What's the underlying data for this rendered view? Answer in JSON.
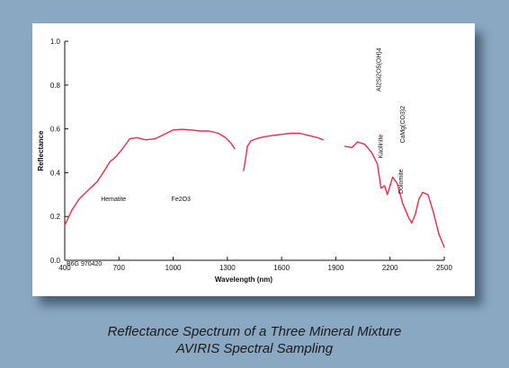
{
  "caption": {
    "line1": "Reflectance Spectrum of a Three Mineral Mixture",
    "line2": "AVIRIS Spectral Sampling"
  },
  "colors": {
    "background": "#8aa8c2",
    "card": "#ffffff",
    "series": "#ee2a4a",
    "axis": "#111111"
  },
  "chart_data": {
    "type": "line",
    "title": "",
    "xlabel": "Wavelength (nm)",
    "ylabel": "Reflectance",
    "xlim": [
      400,
      2500
    ],
    "ylim": [
      0.0,
      1.0
    ],
    "grid": false,
    "x_ticks": [
      {
        "value": 400,
        "label": "400"
      },
      {
        "value": 700,
        "label": "700"
      },
      {
        "value": 1000,
        "label": "1000"
      },
      {
        "value": 1300,
        "label": "1300"
      },
      {
        "value": 1600,
        "label": "1600"
      },
      {
        "value": 1900,
        "label": "1900"
      },
      {
        "value": 2200,
        "label": "2200"
      },
      {
        "value": 2500,
        "label": "2500"
      }
    ],
    "y_ticks": [
      {
        "value": 0.0,
        "label": "0.0"
      },
      {
        "value": 0.2,
        "label": "0.2"
      },
      {
        "value": 0.4,
        "label": "0.4"
      },
      {
        "value": 0.6,
        "label": "0.6"
      },
      {
        "value": 0.8,
        "label": "0.8"
      },
      {
        "value": 1.0,
        "label": "1.0"
      }
    ],
    "series": [
      {
        "segments": [
          [
            [
              400,
              0.16
            ],
            [
              440,
              0.23
            ],
            [
              480,
              0.28
            ],
            [
              530,
              0.32
            ],
            [
              580,
              0.36
            ],
            [
              620,
              0.41
            ],
            [
              650,
              0.45
            ],
            [
              680,
              0.47
            ],
            [
              720,
              0.51
            ],
            [
              760,
              0.555
            ],
            [
              800,
              0.56
            ],
            [
              850,
              0.55
            ],
            [
              900,
              0.555
            ],
            [
              950,
              0.575
            ],
            [
              1000,
              0.595
            ],
            [
              1050,
              0.598
            ],
            [
              1100,
              0.595
            ],
            [
              1150,
              0.59
            ],
            [
              1200,
              0.59
            ],
            [
              1250,
              0.58
            ],
            [
              1290,
              0.56
            ],
            [
              1320,
              0.535
            ],
            [
              1340,
              0.51
            ]
          ],
          [
            [
              1390,
              0.41
            ],
            [
              1400,
              0.46
            ],
            [
              1410,
              0.52
            ],
            [
              1430,
              0.545
            ],
            [
              1460,
              0.555
            ],
            [
              1500,
              0.563
            ],
            [
              1550,
              0.57
            ],
            [
              1600,
              0.575
            ],
            [
              1650,
              0.58
            ],
            [
              1700,
              0.58
            ],
            [
              1750,
              0.57
            ],
            [
              1800,
              0.56
            ],
            [
              1830,
              0.55
            ]
          ],
          [
            [
              1950,
              0.52
            ],
            [
              1990,
              0.515
            ],
            [
              2020,
              0.54
            ],
            [
              2060,
              0.53
            ],
            [
              2100,
              0.49
            ],
            [
              2130,
              0.44
            ],
            [
              2150,
              0.33
            ],
            [
              2170,
              0.34
            ],
            [
              2185,
              0.3
            ],
            [
              2200,
              0.34
            ],
            [
              2215,
              0.38
            ],
            [
              2240,
              0.35
            ],
            [
              2270,
              0.26
            ],
            [
              2300,
              0.2
            ],
            [
              2320,
              0.17
            ],
            [
              2340,
              0.21
            ],
            [
              2360,
              0.28
            ],
            [
              2380,
              0.31
            ],
            [
              2410,
              0.3
            ],
            [
              2440,
              0.22
            ],
            [
              2470,
              0.12
            ],
            [
              2500,
              0.06
            ]
          ]
        ]
      }
    ],
    "annotations": [
      {
        "text": "Hematite",
        "x": 600,
        "y": 0.27
      },
      {
        "text": "Fe2O3",
        "x": 990,
        "y": 0.27
      },
      {
        "text": "Kaolinite",
        "x": 2160,
        "y": 0.52,
        "rotated": true
      },
      {
        "text": "Al2Si2O5(OH)4",
        "x": 2150,
        "y": 0.87,
        "rotated": true
      },
      {
        "text": "Dolomite",
        "x": 2270,
        "y": 0.36,
        "rotated": true
      },
      {
        "text": "CaMg(CO3)2",
        "x": 2280,
        "y": 0.62,
        "rotated": true
      }
    ],
    "corner_label": "B6G 970420"
  }
}
